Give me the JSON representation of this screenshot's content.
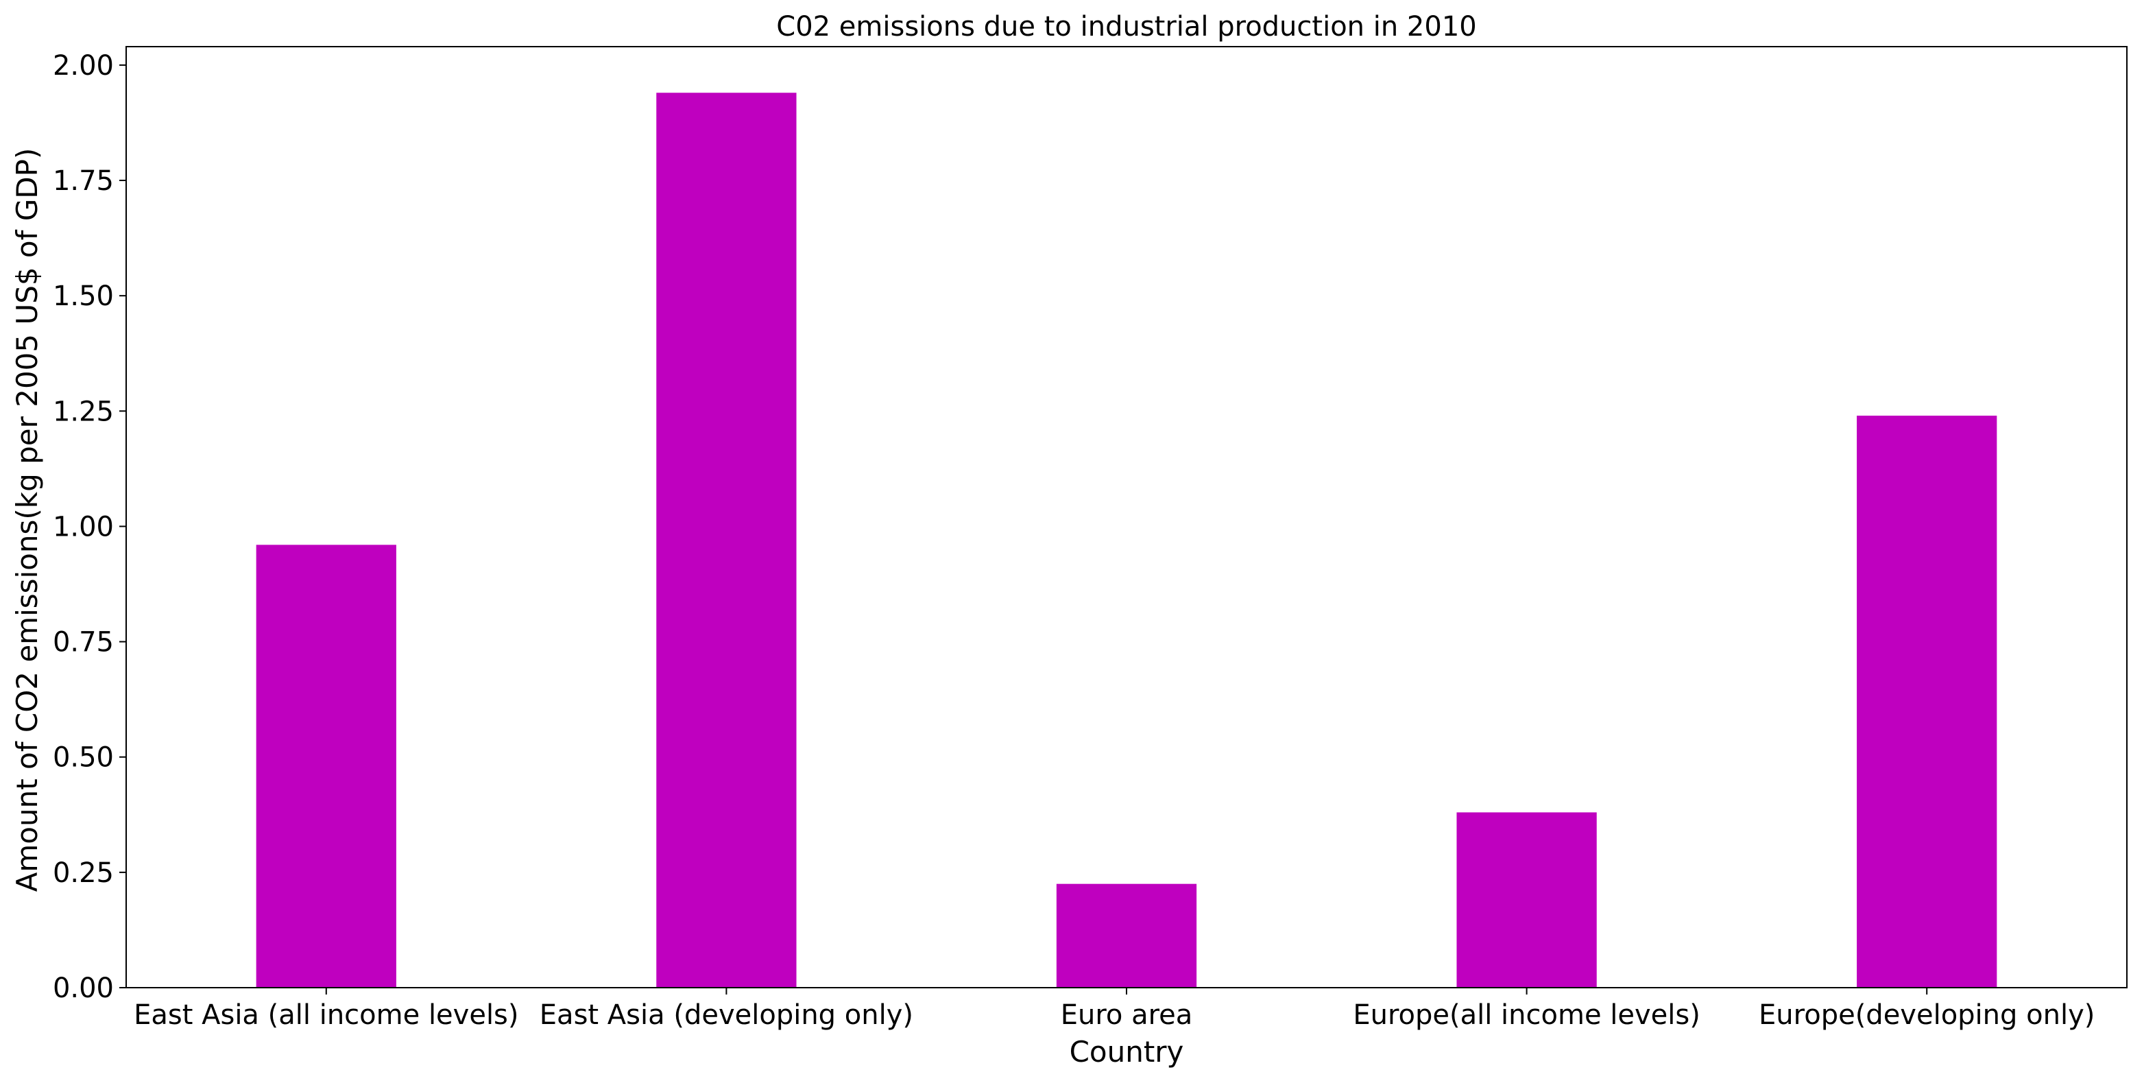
{
  "chart_data": {
    "type": "bar",
    "title": "C02 emissions due to industrial production in 2010",
    "xlabel": "Country",
    "ylabel": "Amount of CO2 emissions(kg per 2005 US$ of GDP)",
    "categories": [
      "East Asia (all income levels)",
      "East Asia (developing only)",
      "Euro area",
      "Europe(all income levels)",
      "Europe(developing only)"
    ],
    "values": [
      0.96,
      1.94,
      0.225,
      0.38,
      1.24
    ],
    "ylim": [
      0,
      2.04
    ],
    "yticks": [
      0.0,
      0.25,
      0.5,
      0.75,
      1.0,
      1.25,
      1.5,
      1.75,
      2.0
    ],
    "ytick_labels": [
      "0.00",
      "0.25",
      "0.50",
      "0.75",
      "1.00",
      "1.25",
      "1.50",
      "1.75",
      "2.00"
    ],
    "bar_color": "#bf00bf",
    "grid": false,
    "legend": "none"
  }
}
